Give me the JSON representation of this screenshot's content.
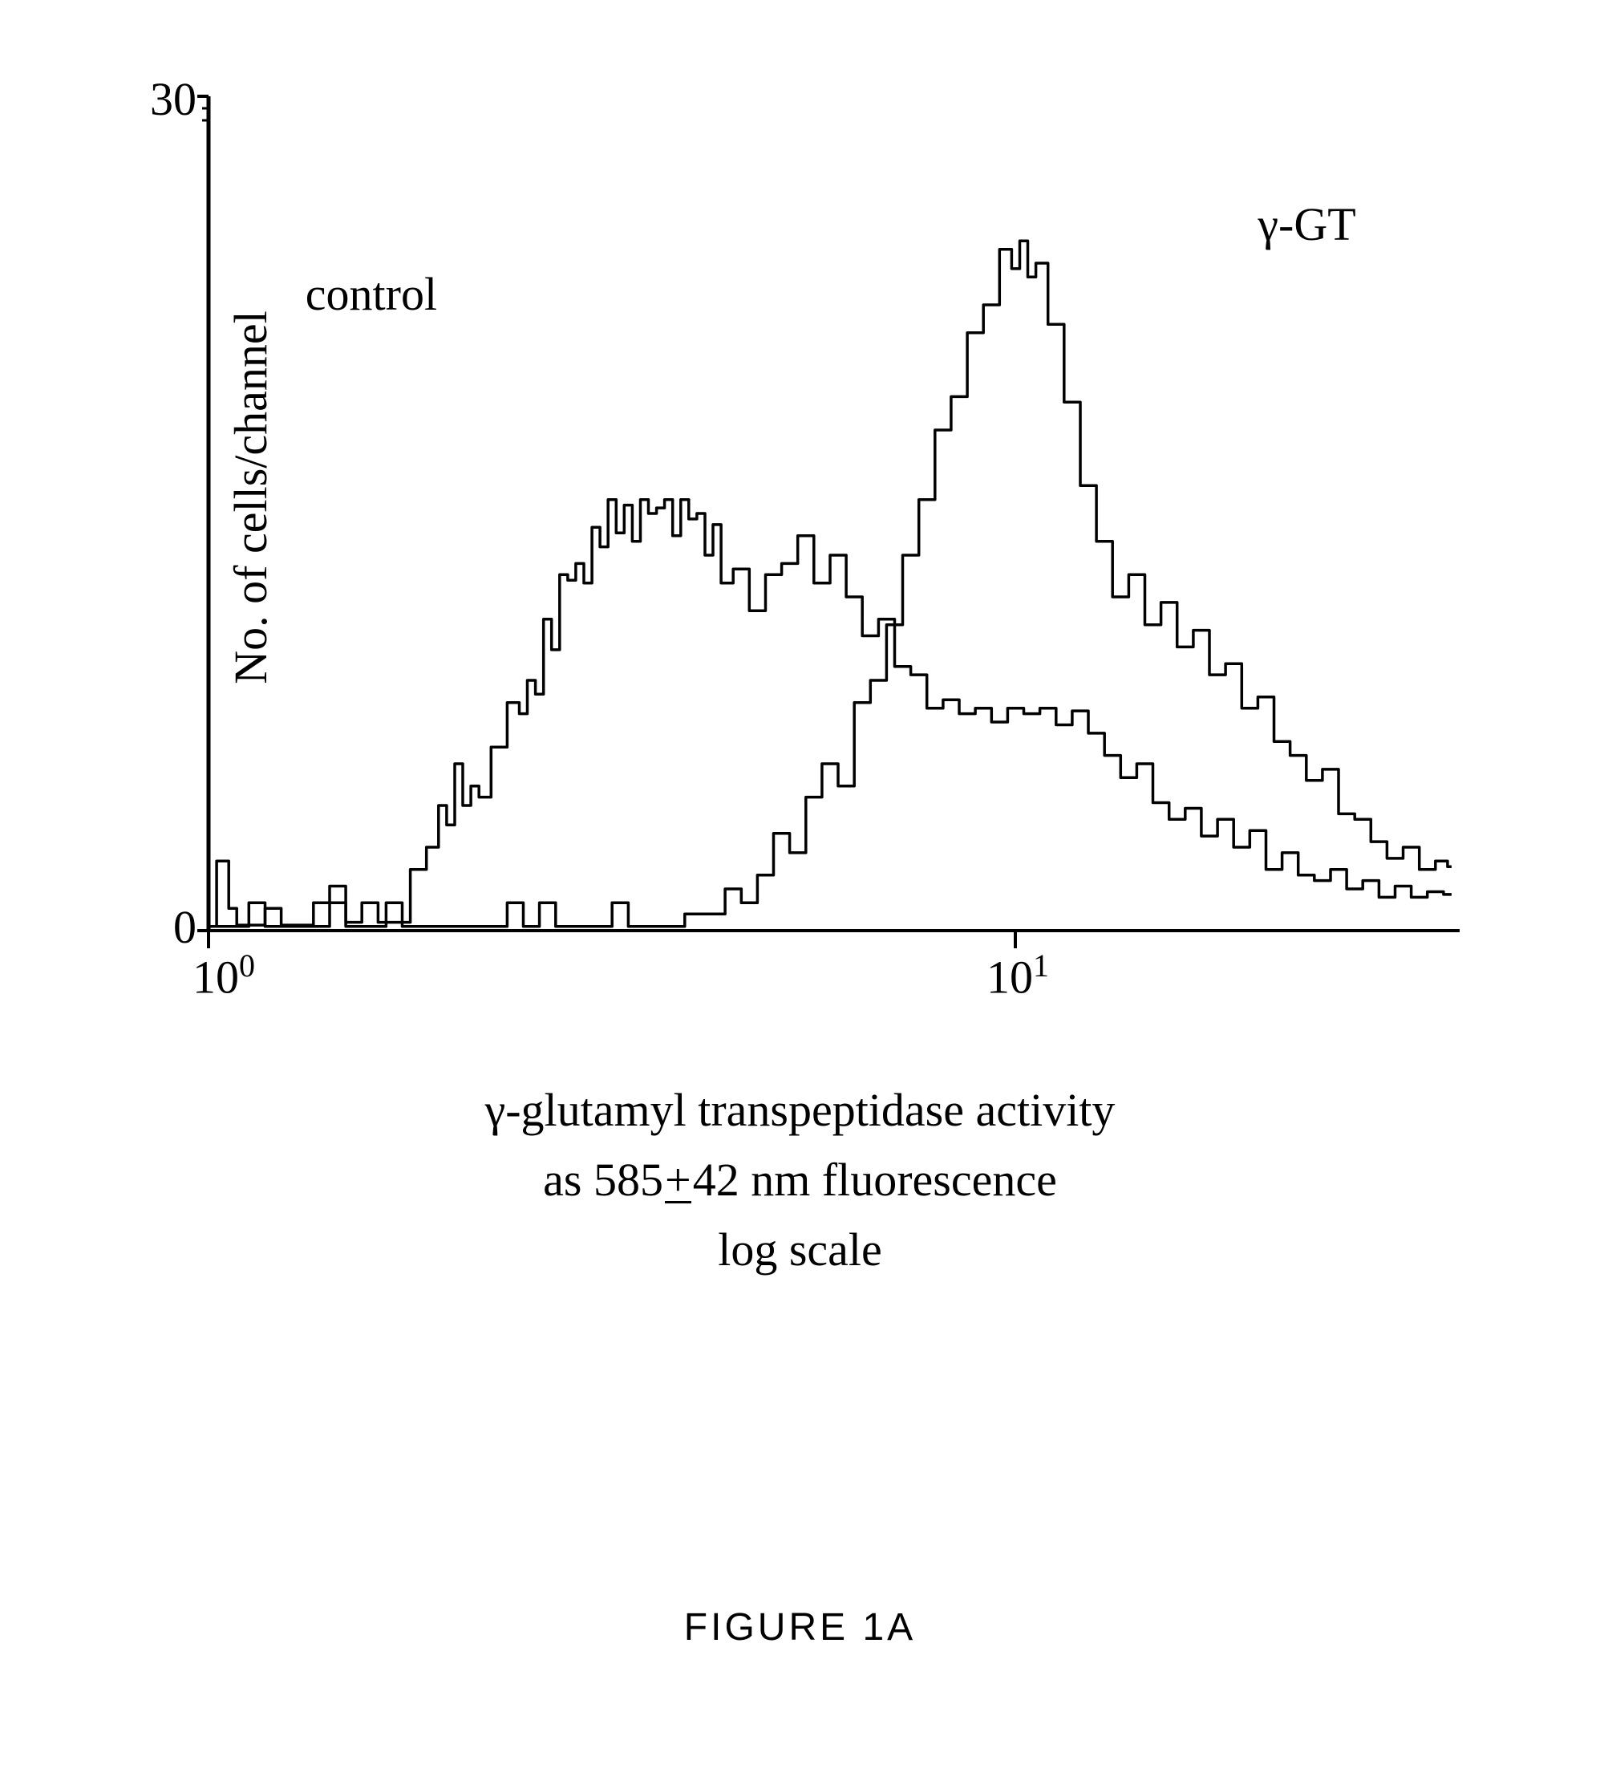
{
  "chart": {
    "type": "histogram",
    "ylabel": "No. of cells/channel",
    "xlabel_line1": "γ-glutamyl transpeptidase activity",
    "xlabel_line2_prefix": "as 585",
    "xlabel_line2_pm": "±",
    "xlabel_line2_suffix": "42 nm fluorescence",
    "xlabel_line3": "log scale",
    "ylim": [
      0,
      30
    ],
    "xlim_log": [
      0,
      1.55
    ],
    "yticks": [
      0,
      30
    ],
    "xticks_log": [
      0,
      1
    ],
    "xtick_labels": [
      "10⁰",
      "10¹"
    ],
    "annotations": {
      "control": {
        "text": "control",
        "x_log": 0.12,
        "y": 23
      },
      "ggt": {
        "text": "γ-GT",
        "x_log": 1.3,
        "y": 25.5
      }
    },
    "line_color": "#000000",
    "line_width": 3.5,
    "background_color": "#ffffff",
    "axis_color": "#000000",
    "axis_width": 5,
    "label_fontsize": 58,
    "tick_fontsize": 58,
    "control_series": [
      {
        "x": 0.0,
        "y": 0.15
      },
      {
        "x": 0.02,
        "y": 2.5
      },
      {
        "x": 0.03,
        "y": 0.8
      },
      {
        "x": 0.04,
        "y": 0.2
      },
      {
        "x": 0.06,
        "y": 0.2
      },
      {
        "x": 0.08,
        "y": 0.8
      },
      {
        "x": 0.1,
        "y": 0.2
      },
      {
        "x": 0.12,
        "y": 0.2
      },
      {
        "x": 0.14,
        "y": 1.0
      },
      {
        "x": 0.16,
        "y": 1.6
      },
      {
        "x": 0.18,
        "y": 0.3
      },
      {
        "x": 0.2,
        "y": 1.0
      },
      {
        "x": 0.22,
        "y": 0.3
      },
      {
        "x": 0.24,
        "y": 0.3
      },
      {
        "x": 0.26,
        "y": 2.2
      },
      {
        "x": 0.28,
        "y": 3.0
      },
      {
        "x": 0.29,
        "y": 4.5
      },
      {
        "x": 0.3,
        "y": 3.8
      },
      {
        "x": 0.31,
        "y": 6.0
      },
      {
        "x": 0.32,
        "y": 4.5
      },
      {
        "x": 0.33,
        "y": 5.2
      },
      {
        "x": 0.34,
        "y": 4.8
      },
      {
        "x": 0.36,
        "y": 6.6
      },
      {
        "x": 0.38,
        "y": 8.2
      },
      {
        "x": 0.39,
        "y": 7.8
      },
      {
        "x": 0.4,
        "y": 9.0
      },
      {
        "x": 0.41,
        "y": 8.5
      },
      {
        "x": 0.42,
        "y": 11.2
      },
      {
        "x": 0.43,
        "y": 10.1
      },
      {
        "x": 0.44,
        "y": 12.8
      },
      {
        "x": 0.45,
        "y": 12.6
      },
      {
        "x": 0.46,
        "y": 13.2
      },
      {
        "x": 0.47,
        "y": 12.5
      },
      {
        "x": 0.48,
        "y": 14.5
      },
      {
        "x": 0.49,
        "y": 13.8
      },
      {
        "x": 0.5,
        "y": 15.5
      },
      {
        "x": 0.51,
        "y": 14.3
      },
      {
        "x": 0.52,
        "y": 15.3
      },
      {
        "x": 0.53,
        "y": 14.0
      },
      {
        "x": 0.54,
        "y": 15.5
      },
      {
        "x": 0.55,
        "y": 15.0
      },
      {
        "x": 0.56,
        "y": 15.2
      },
      {
        "x": 0.57,
        "y": 15.5
      },
      {
        "x": 0.58,
        "y": 14.2
      },
      {
        "x": 0.59,
        "y": 15.5
      },
      {
        "x": 0.6,
        "y": 14.8
      },
      {
        "x": 0.61,
        "y": 15.0
      },
      {
        "x": 0.62,
        "y": 13.5
      },
      {
        "x": 0.63,
        "y": 14.6
      },
      {
        "x": 0.64,
        "y": 12.5
      },
      {
        "x": 0.66,
        "y": 13.0
      },
      {
        "x": 0.68,
        "y": 11.5
      },
      {
        "x": 0.7,
        "y": 12.8
      },
      {
        "x": 0.72,
        "y": 13.2
      },
      {
        "x": 0.74,
        "y": 14.2
      },
      {
        "x": 0.76,
        "y": 12.5
      },
      {
        "x": 0.78,
        "y": 13.5
      },
      {
        "x": 0.8,
        "y": 12.0
      },
      {
        "x": 0.82,
        "y": 10.6
      },
      {
        "x": 0.84,
        "y": 11.2
      },
      {
        "x": 0.86,
        "y": 9.5
      },
      {
        "x": 0.88,
        "y": 9.2
      },
      {
        "x": 0.9,
        "y": 8.0
      },
      {
        "x": 0.92,
        "y": 8.3
      },
      {
        "x": 0.94,
        "y": 7.8
      },
      {
        "x": 0.96,
        "y": 8.0
      },
      {
        "x": 0.98,
        "y": 7.5
      },
      {
        "x": 1.0,
        "y": 8.0
      },
      {
        "x": 1.02,
        "y": 7.8
      },
      {
        "x": 1.04,
        "y": 8.0
      },
      {
        "x": 1.06,
        "y": 7.4
      },
      {
        "x": 1.08,
        "y": 7.9
      },
      {
        "x": 1.1,
        "y": 7.1
      },
      {
        "x": 1.12,
        "y": 6.3
      },
      {
        "x": 1.14,
        "y": 5.5
      },
      {
        "x": 1.16,
        "y": 6.0
      },
      {
        "x": 1.18,
        "y": 4.6
      },
      {
        "x": 1.2,
        "y": 4.0
      },
      {
        "x": 1.22,
        "y": 4.4
      },
      {
        "x": 1.24,
        "y": 3.4
      },
      {
        "x": 1.26,
        "y": 4.0
      },
      {
        "x": 1.28,
        "y": 3.0
      },
      {
        "x": 1.3,
        "y": 3.6
      },
      {
        "x": 1.32,
        "y": 2.2
      },
      {
        "x": 1.34,
        "y": 2.8
      },
      {
        "x": 1.36,
        "y": 2.0
      },
      {
        "x": 1.38,
        "y": 1.8
      },
      {
        "x": 1.4,
        "y": 2.2
      },
      {
        "x": 1.42,
        "y": 1.5
      },
      {
        "x": 1.44,
        "y": 1.8
      },
      {
        "x": 1.46,
        "y": 1.2
      },
      {
        "x": 1.48,
        "y": 1.6
      },
      {
        "x": 1.5,
        "y": 1.2
      },
      {
        "x": 1.52,
        "y": 1.4
      },
      {
        "x": 1.54,
        "y": 1.3
      }
    ],
    "ggt_series": [
      {
        "x": 0.0,
        "y": 0.15
      },
      {
        "x": 0.04,
        "y": 0.15
      },
      {
        "x": 0.06,
        "y": 1.0
      },
      {
        "x": 0.08,
        "y": 0.15
      },
      {
        "x": 0.14,
        "y": 0.15
      },
      {
        "x": 0.16,
        "y": 1.0
      },
      {
        "x": 0.18,
        "y": 0.15
      },
      {
        "x": 0.21,
        "y": 0.15
      },
      {
        "x": 0.23,
        "y": 1.0
      },
      {
        "x": 0.25,
        "y": 0.15
      },
      {
        "x": 0.3,
        "y": 0.15
      },
      {
        "x": 0.32,
        "y": 0.15
      },
      {
        "x": 0.36,
        "y": 0.15
      },
      {
        "x": 0.38,
        "y": 1.0
      },
      {
        "x": 0.4,
        "y": 0.15
      },
      {
        "x": 0.42,
        "y": 1.0
      },
      {
        "x": 0.44,
        "y": 0.15
      },
      {
        "x": 0.49,
        "y": 0.15
      },
      {
        "x": 0.51,
        "y": 1.0
      },
      {
        "x": 0.53,
        "y": 0.15
      },
      {
        "x": 0.58,
        "y": 0.15
      },
      {
        "x": 0.6,
        "y": 0.6
      },
      {
        "x": 0.63,
        "y": 0.6
      },
      {
        "x": 0.65,
        "y": 1.5
      },
      {
        "x": 0.67,
        "y": 1.0
      },
      {
        "x": 0.69,
        "y": 2.0
      },
      {
        "x": 0.71,
        "y": 3.5
      },
      {
        "x": 0.73,
        "y": 2.8
      },
      {
        "x": 0.75,
        "y": 4.8
      },
      {
        "x": 0.77,
        "y": 6.0
      },
      {
        "x": 0.79,
        "y": 5.2
      },
      {
        "x": 0.81,
        "y": 8.2
      },
      {
        "x": 0.83,
        "y": 9.0
      },
      {
        "x": 0.85,
        "y": 11.0
      },
      {
        "x": 0.87,
        "y": 13.5
      },
      {
        "x": 0.89,
        "y": 15.5
      },
      {
        "x": 0.91,
        "y": 18.0
      },
      {
        "x": 0.93,
        "y": 19.2
      },
      {
        "x": 0.95,
        "y": 21.5
      },
      {
        "x": 0.97,
        "y": 22.5
      },
      {
        "x": 0.99,
        "y": 24.5
      },
      {
        "x": 1.0,
        "y": 23.8
      },
      {
        "x": 1.01,
        "y": 24.8
      },
      {
        "x": 1.02,
        "y": 23.5
      },
      {
        "x": 1.03,
        "y": 24.0
      },
      {
        "x": 1.05,
        "y": 21.8
      },
      {
        "x": 1.07,
        "y": 19.0
      },
      {
        "x": 1.09,
        "y": 16.0
      },
      {
        "x": 1.11,
        "y": 14.0
      },
      {
        "x": 1.13,
        "y": 12.0
      },
      {
        "x": 1.15,
        "y": 12.8
      },
      {
        "x": 1.17,
        "y": 11.0
      },
      {
        "x": 1.19,
        "y": 11.8
      },
      {
        "x": 1.21,
        "y": 10.2
      },
      {
        "x": 1.23,
        "y": 10.8
      },
      {
        "x": 1.25,
        "y": 9.2
      },
      {
        "x": 1.27,
        "y": 9.6
      },
      {
        "x": 1.29,
        "y": 8.0
      },
      {
        "x": 1.31,
        "y": 8.4
      },
      {
        "x": 1.33,
        "y": 6.8
      },
      {
        "x": 1.35,
        "y": 6.3
      },
      {
        "x": 1.37,
        "y": 5.4
      },
      {
        "x": 1.39,
        "y": 5.8
      },
      {
        "x": 1.41,
        "y": 4.2
      },
      {
        "x": 1.43,
        "y": 4.0
      },
      {
        "x": 1.45,
        "y": 3.2
      },
      {
        "x": 1.47,
        "y": 2.6
      },
      {
        "x": 1.49,
        "y": 3.0
      },
      {
        "x": 1.51,
        "y": 2.2
      },
      {
        "x": 1.53,
        "y": 2.5
      },
      {
        "x": 1.54,
        "y": 2.3
      }
    ]
  },
  "caption": "FIGURE 1A"
}
